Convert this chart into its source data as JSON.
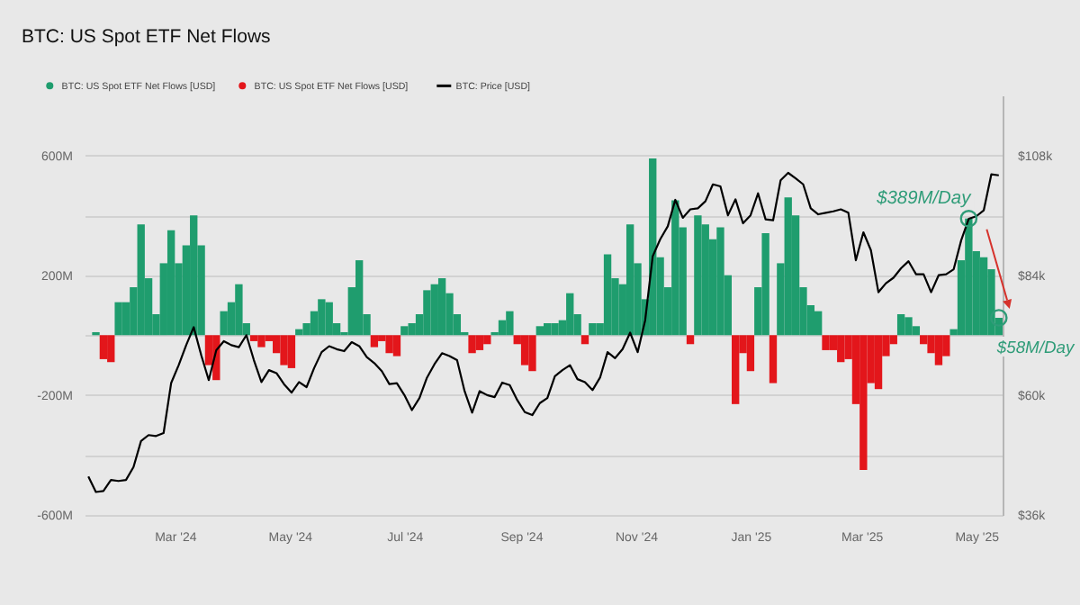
{
  "chart_data": {
    "type": "bar",
    "title": "BTC: US Spot ETF Net Flows",
    "x": [
      "2024-01-15",
      "2024-01-19",
      "2024-01-23",
      "2024-01-27",
      "2024-01-31",
      "2024-02-04",
      "2024-02-08",
      "2024-02-12",
      "2024-02-16",
      "2024-02-20",
      "2024-02-24",
      "2024-02-28",
      "2024-03-03",
      "2024-03-07",
      "2024-03-11",
      "2024-03-15",
      "2024-03-19",
      "2024-03-23",
      "2024-03-27",
      "2024-03-31",
      "2024-04-04",
      "2024-04-08",
      "2024-04-12",
      "2024-04-16",
      "2024-04-20",
      "2024-04-24",
      "2024-04-28",
      "2024-05-02",
      "2024-05-06",
      "2024-05-10",
      "2024-05-14",
      "2024-05-18",
      "2024-05-22",
      "2024-05-26",
      "2024-05-30",
      "2024-06-03",
      "2024-06-07",
      "2024-06-11",
      "2024-06-15",
      "2024-06-19",
      "2024-06-23",
      "2024-06-27",
      "2024-07-01",
      "2024-07-05",
      "2024-07-09",
      "2024-07-13",
      "2024-07-17",
      "2024-07-21",
      "2024-07-25",
      "2024-07-29",
      "2024-08-02",
      "2024-08-06",
      "2024-08-10",
      "2024-08-14",
      "2024-08-18",
      "2024-08-22",
      "2024-08-26",
      "2024-08-30",
      "2024-09-03",
      "2024-09-07",
      "2024-09-11",
      "2024-09-15",
      "2024-09-19",
      "2024-09-23",
      "2024-09-27",
      "2024-10-01",
      "2024-10-05",
      "2024-10-09",
      "2024-10-13",
      "2024-10-17",
      "2024-10-21",
      "2024-10-25",
      "2024-10-29",
      "2024-11-02",
      "2024-11-06",
      "2024-11-10",
      "2024-11-14",
      "2024-11-18",
      "2024-11-22",
      "2024-11-26",
      "2024-11-30",
      "2024-12-04",
      "2024-12-08",
      "2024-12-12",
      "2024-12-16",
      "2024-12-20",
      "2024-12-24",
      "2024-12-28",
      "2025-01-01",
      "2025-01-05",
      "2025-01-09",
      "2025-01-13",
      "2025-01-17",
      "2025-01-21",
      "2025-01-25",
      "2025-01-29",
      "2025-02-02",
      "2025-02-06",
      "2025-02-10",
      "2025-02-14",
      "2025-02-18",
      "2025-02-22",
      "2025-02-26",
      "2025-03-02",
      "2025-03-06",
      "2025-03-10",
      "2025-03-14",
      "2025-03-18",
      "2025-03-22",
      "2025-03-26",
      "2025-03-30",
      "2025-04-03",
      "2025-04-07",
      "2025-04-11",
      "2025-04-15",
      "2025-04-19",
      "2025-04-23",
      "2025-04-27",
      "2025-05-01",
      "2025-05-05",
      "2025-05-09",
      "2025-05-13"
    ],
    "series": [
      {
        "name": "BTC: US Spot ETF Net Flows [USD]",
        "color": "#1f9d6e",
        "values": [
          null,
          10,
          null,
          null,
          110,
          110,
          160,
          370,
          190,
          70,
          240,
          350,
          240,
          300,
          400,
          300,
          null,
          null,
          80,
          110,
          170,
          40,
          null,
          null,
          null,
          null,
          null,
          null,
          20,
          40,
          80,
          120,
          110,
          40,
          10,
          160,
          250,
          70,
          null,
          null,
          null,
          null,
          30,
          40,
          70,
          150,
          170,
          190,
          140,
          70,
          10,
          null,
          null,
          null,
          10,
          50,
          80,
          null,
          null,
          null,
          30,
          40,
          40,
          50,
          140,
          70,
          null,
          40,
          40,
          270,
          190,
          170,
          370,
          240,
          120,
          590,
          260,
          160,
          450,
          360,
          null,
          400,
          370,
          320,
          360,
          200,
          null,
          null,
          null,
          160,
          340,
          null,
          240,
          460,
          400,
          160,
          100,
          80,
          null,
          null,
          null,
          null,
          null,
          null,
          null,
          null,
          null,
          null,
          70,
          60,
          30,
          null,
          null,
          null,
          null,
          20,
          250,
          389,
          280,
          260,
          220,
          58
        ]
      },
      {
        "name": "BTC: US Spot ETF Net Flows [USD]",
        "color": "#e3161b",
        "values": [
          null,
          null,
          -80,
          -90,
          null,
          null,
          null,
          null,
          null,
          null,
          null,
          null,
          null,
          null,
          null,
          null,
          -100,
          -150,
          null,
          null,
          null,
          null,
          -20,
          -40,
          -20,
          -60,
          -100,
          -110,
          null,
          null,
          null,
          null,
          null,
          null,
          null,
          null,
          null,
          null,
          -40,
          -20,
          -60,
          -70,
          null,
          null,
          null,
          null,
          null,
          null,
          null,
          null,
          null,
          -60,
          -50,
          -30,
          null,
          null,
          null,
          -30,
          -100,
          -120,
          null,
          null,
          null,
          null,
          null,
          null,
          -30,
          null,
          null,
          null,
          null,
          null,
          null,
          null,
          null,
          null,
          null,
          null,
          null,
          null,
          -30,
          null,
          null,
          null,
          null,
          null,
          -230,
          -60,
          -120,
          null,
          null,
          -160,
          null,
          null,
          null,
          null,
          null,
          null,
          -50,
          -50,
          -90,
          -80,
          -230,
          -450,
          -160,
          -180,
          -70,
          -30,
          null,
          null,
          null,
          -30,
          -60,
          -100,
          -70,
          null,
          null,
          null,
          null,
          null,
          null,
          null
        ]
      },
      {
        "name": "BTC: Price [USD]",
        "type": "line",
        "axis": "y2",
        "color": "#000000",
        "values": [
          43.7,
          40.6,
          40.8,
          43.0,
          42.8,
          43.0,
          45.6,
          50.8,
          52.0,
          51.8,
          52.4,
          62.4,
          66.0,
          70.0,
          73.6,
          68.0,
          63.0,
          69.0,
          70.8,
          70.0,
          69.6,
          72.0,
          67.0,
          62.6,
          65.0,
          64.4,
          62.2,
          60.5,
          62.6,
          61.6,
          65.4,
          68.6,
          69.8,
          69.2,
          68.8,
          70.6,
          69.8,
          67.6,
          66.4,
          64.8,
          62.2,
          62.4,
          60.0,
          57.0,
          59.4,
          63.5,
          66.2,
          68.4,
          67.8,
          67.0,
          60.8,
          56.5,
          60.8,
          60.0,
          59.6,
          62.5,
          62.0,
          59.0,
          56.6,
          56.0,
          58.4,
          59.4,
          63.8,
          65.0,
          66.0,
          63.2,
          62.6,
          61.0,
          63.5,
          68.6,
          67.4,
          69.2,
          72.5,
          68.6,
          75.0,
          87.8,
          91.2,
          93.8,
          99.1,
          95.5,
          97.2,
          97.4,
          98.8,
          102.2,
          101.8,
          96.0,
          99.2,
          94.4,
          96.0,
          100.4,
          95.2,
          95.0,
          103.0,
          104.5,
          103.4,
          102.2,
          97.4,
          96.2,
          96.5,
          96.8,
          97.2,
          96.5,
          87.0,
          92.6,
          89.0,
          80.6,
          82.4,
          83.5,
          85.4,
          86.8,
          84.2,
          84.2,
          80.6,
          84.0,
          84.2,
          85.2,
          91.0,
          95.3,
          95.8,
          97.0,
          104.2,
          104.0
        ]
      }
    ],
    "xlim": [
      "2024-01-13",
      "2025-05-15"
    ],
    "xticks": [
      {
        "value": "2024-03-01",
        "label": "Mar '24"
      },
      {
        "value": "2024-05-01",
        "label": "May '24"
      },
      {
        "value": "2024-07-01",
        "label": "Jul '24"
      },
      {
        "value": "2024-09-01",
        "label": "Sep '24"
      },
      {
        "value": "2024-11-01",
        "label": "Nov '24"
      },
      {
        "value": "2025-01-01",
        "label": "Jan '25"
      },
      {
        "value": "2025-03-01",
        "label": "Mar '25"
      },
      {
        "value": "2025-05-01",
        "label": "May '25"
      }
    ],
    "ylim": [
      -600,
      800
    ],
    "yticks": [
      {
        "value": -600,
        "label": "-600M"
      },
      {
        "value": -400,
        "label": null
      },
      {
        "value": -200,
        "label": "-200M"
      },
      {
        "value": 0,
        "label": null
      },
      {
        "value": 200,
        "label": "200M"
      },
      {
        "value": 400,
        "label": null
      },
      {
        "value": 600,
        "label": "600M"
      }
    ],
    "y2lim": [
      36,
      120
    ],
    "y2ticks": [
      {
        "value": 36,
        "label": "$36k"
      },
      {
        "value": 60,
        "label": "$60k"
      },
      {
        "value": 84,
        "label": "$84k"
      },
      {
        "value": 108,
        "label": "$108k"
      }
    ],
    "annotations": [
      {
        "text": "$389M/Day",
        "x": "2025-04-27",
        "y": 389
      },
      {
        "text": "$58M/Day",
        "x": "2025-05-13",
        "y": 58
      }
    ],
    "grid": "y",
    "legend": "top left"
  }
}
